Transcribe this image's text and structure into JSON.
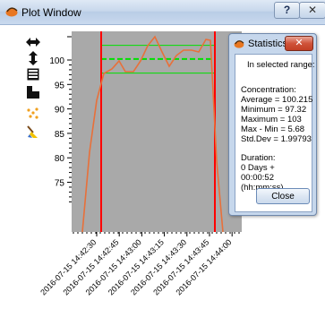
{
  "window": {
    "title": "Plot Window",
    "help_label": "?",
    "close_label": "✕"
  },
  "toolbar": {
    "icons": [
      "pan-horizontal-icon",
      "pan-vertical-icon",
      "table-icon",
      "copy-icon",
      "scatter-icon",
      "broom-icon"
    ]
  },
  "chart_data": {
    "type": "line",
    "y_ticks": [
      "100",
      "95",
      "90",
      "85",
      "80",
      "75"
    ],
    "x_tick_labels": [
      "2016-07-15 14:42:30",
      "2016-07-15 14:42:45",
      "2016-07-15 14:43:00",
      "2016-07-15 14:43:15",
      "2016-07-15 14:43:30",
      "2016-07-15 14:43:45",
      "2016-07-15 14:44:00"
    ],
    "colors": {
      "line": "#e8703a",
      "bounds": "#ff0000",
      "band": "#00e000",
      "background": "#a9a9a9"
    }
  },
  "stats": {
    "title": "Statistics",
    "close_x": "✕",
    "header": "In selected range:",
    "concentration_label": "Concentration:",
    "average": "Average = 100.215",
    "minimum": "Minimum = 97.32",
    "maximum": "Maximum = 103",
    "range": "Max - Min = 5.68",
    "stddev": "Std.Dev = 1.99793",
    "duration_label": "Duration:",
    "duration_days": "0 Days +",
    "duration_time": "00:00:52",
    "duration_format": "(hh:mm:ss)",
    "close_button": "Close"
  }
}
